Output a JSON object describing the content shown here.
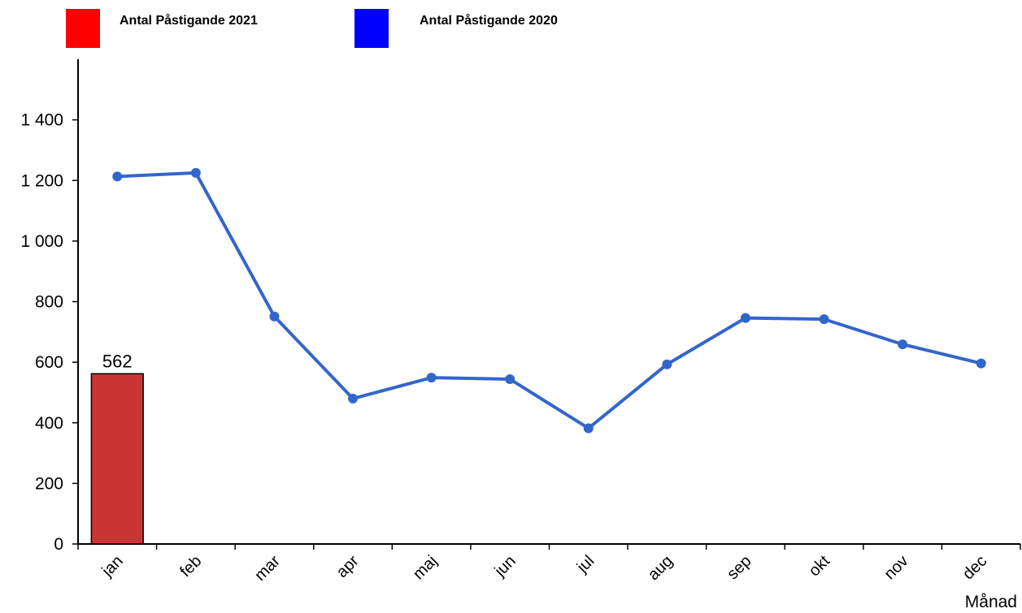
{
  "legend": [
    {
      "label": "Antal Påstigande 2021",
      "color": "#ff0000"
    },
    {
      "label": "Antal Påstigande 2020",
      "color": "#0000ff"
    }
  ],
  "chart_data": {
    "type": "bar",
    "categories": [
      "jan",
      "feb",
      "mar",
      "apr",
      "maj",
      "jun",
      "jul",
      "aug",
      "sep",
      "okt",
      "nov",
      "dec"
    ],
    "series": [
      {
        "name": "Antal Påstigande 2021",
        "kind": "bar",
        "color": "#cc3333",
        "values": [
          562,
          null,
          null,
          null,
          null,
          null,
          null,
          null,
          null,
          null,
          null,
          null
        ]
      },
      {
        "name": "Antal Påstigande 2020",
        "kind": "line",
        "color": "#3366cc",
        "values": [
          1213,
          1225,
          751,
          480,
          549,
          544,
          382,
          593,
          746,
          742,
          659,
          596
        ]
      }
    ],
    "data_labels": [
      {
        "category": "jan",
        "text": "562"
      }
    ],
    "yticks": [
      0,
      200,
      400,
      600,
      800,
      1000,
      1200,
      1400
    ],
    "ytick_labels": [
      "0",
      "200",
      "400",
      "600",
      "800",
      "1 000",
      "1 200",
      "1 400"
    ],
    "ylim": [
      0,
      1600
    ],
    "xlabel": "Månad",
    "ylabel": "",
    "grid": false,
    "legend_position": "top-left"
  }
}
